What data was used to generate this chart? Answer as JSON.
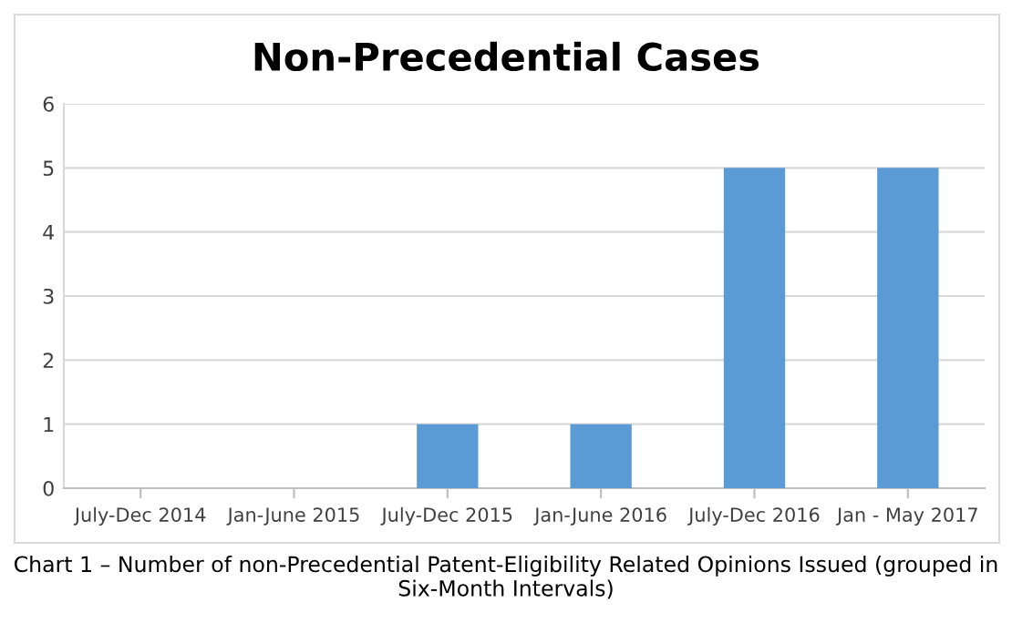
{
  "chart_data": {
    "type": "bar",
    "title": "Non-Precedential Cases",
    "categories": [
      "July-Dec 2014",
      "Jan-June 2015",
      "July-Dec 2015",
      "Jan-June 2016",
      "July-Dec 2016",
      "Jan - May 2017"
    ],
    "values": [
      0,
      0,
      1,
      1,
      5,
      5
    ],
    "color": "#5b9bd5",
    "ylim": [
      0,
      6
    ],
    "yticks": [
      0,
      1,
      2,
      3,
      4,
      5,
      6
    ],
    "grid": "y",
    "legend": false,
    "annotations": [
      "Chart 1 – Number of non-Precedential Patent-Eligibility Related Opinions Issued (grouped in Six-Month Intervals)"
    ]
  }
}
